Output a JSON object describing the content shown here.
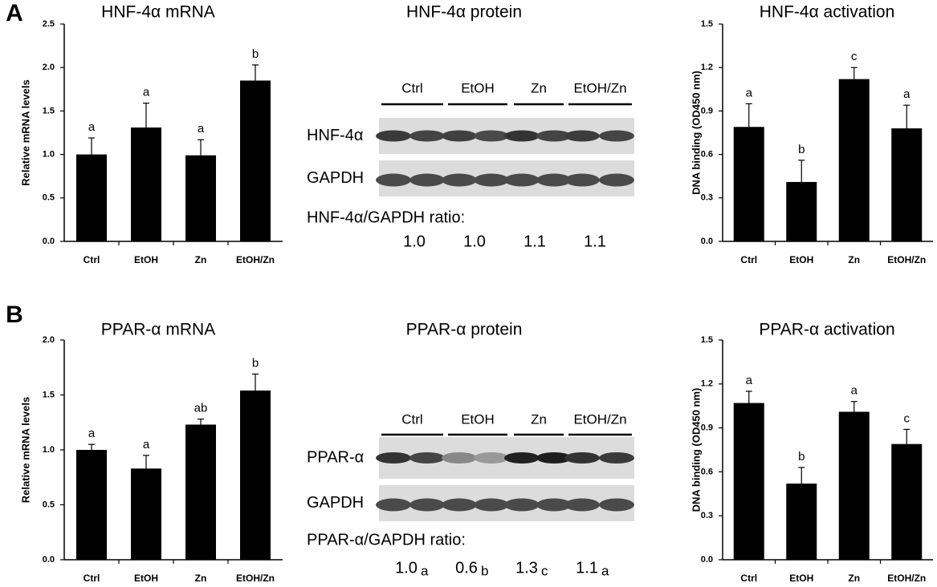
{
  "panel_labels": [
    "A",
    "B"
  ],
  "chart_data": [
    {
      "type": "bar",
      "title": "HNF-4α mRNA",
      "y_label": "Relative mRNA levels",
      "categories": [
        "Ctrl",
        "EtOH",
        "Zn",
        "EtOH/Zn"
      ],
      "values": [
        1.0,
        1.31,
        0.99,
        1.85
      ],
      "errors": [
        0.19,
        0.28,
        0.18,
        0.18
      ],
      "annotations": [
        "a",
        "a",
        "a",
        "b"
      ],
      "color": "#000000",
      "ylim": [
        0,
        2.5
      ],
      "yticks": [
        {
          "value": 0,
          "label": "0.0"
        },
        0.5,
        {
          "value": 1,
          "label": "1.0"
        },
        1.5,
        {
          "value": 2,
          "label": "2.0"
        },
        2.5
      ]
    },
    {
      "type": "bar",
      "title": "HNF-4α activation",
      "y_label": "DNA binding (OD450 nm)",
      "categories": [
        "Ctrl",
        "EtOH",
        "Zn",
        "EtOH/Zn"
      ],
      "values": [
        0.79,
        0.41,
        1.12,
        0.78
      ],
      "errors": [
        0.16,
        0.15,
        0.08,
        0.16
      ],
      "annotations": [
        "a",
        "b",
        "c",
        "a"
      ],
      "color": "#000000",
      "ylim": [
        0,
        1.5
      ],
      "yticks": [
        {
          "value": 0,
          "label": "0.0"
        },
        0.3,
        0.6,
        0.9,
        1.2,
        1.5
      ]
    },
    {
      "type": "bar",
      "title": "PPAR-α mRNA",
      "y_label": "Relative mRNA levels",
      "categories": [
        "Ctrl",
        "EtOH",
        "Zn",
        "EtOH/Zn"
      ],
      "values": [
        1.0,
        0.83,
        1.23,
        1.54
      ],
      "errors": [
        0.05,
        0.12,
        0.05,
        0.15
      ],
      "annotations": [
        "a",
        "a",
        "ab",
        "b"
      ],
      "color": "#000000",
      "ylim": [
        0,
        2.0
      ],
      "yticks": [
        {
          "value": 0,
          "label": "0.0"
        },
        0.5,
        {
          "value": 1,
          "label": "1.0"
        },
        1.5,
        {
          "value": 2,
          "label": "2.0"
        }
      ]
    },
    {
      "type": "bar",
      "title": "PPAR-α activation",
      "y_label": "DNA binding (OD450 nm)",
      "categories": [
        "Ctrl",
        "EtOH",
        "Zn",
        "EtOH/Zn"
      ],
      "values": [
        1.07,
        0.52,
        1.01,
        0.79
      ],
      "errors": [
        0.08,
        0.11,
        0.07,
        0.1
      ],
      "annotations": [
        "a",
        "b",
        "a",
        "c"
      ],
      "color": "#000000",
      "ylim": [
        0,
        1.5
      ],
      "yticks": [
        {
          "value": 0,
          "label": "0.0"
        },
        0.3,
        0.6,
        0.9,
        1.2,
        1.5
      ]
    }
  ],
  "blots": [
    {
      "title": "HNF-4α protein",
      "groups": [
        "Ctrl",
        "EtOH",
        "Zn",
        "EtOH/Zn"
      ],
      "rows": [
        "HNF-4α",
        "GAPDH"
      ],
      "ratio_title": "HNF-4α/GAPDH ratio:",
      "ratios": [
        "1.0",
        "1.0",
        "1.1",
        "1.1"
      ]
    },
    {
      "title": "PPAR-α protein",
      "groups": [
        "Ctrl",
        "EtOH",
        "Zn",
        "EtOH/Zn"
      ],
      "rows": [
        "PPAR-α",
        "GAPDH"
      ],
      "ratio_title": "PPAR-α/GAPDH ratio:",
      "ratios": [
        "1.0",
        "0.6",
        "1.3",
        "1.1"
      ],
      "ratio_letters": [
        "a",
        "b",
        "c",
        "a"
      ]
    }
  ]
}
